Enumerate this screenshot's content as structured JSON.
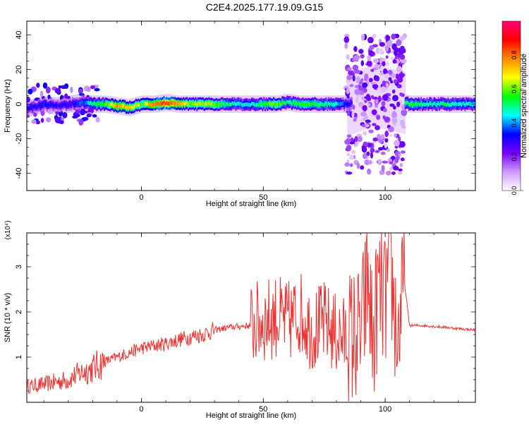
{
  "title": "C2E4.2025.177.19.09.G15",
  "chart_data": [
    {
      "type": "heatmap",
      "xlabel": "Height of straight line (km)",
      "ylabel": "Frequency (Hz)",
      "xlim": [
        -47,
        137
      ],
      "ylim": [
        -50,
        48
      ],
      "xticks": [
        0,
        50,
        100
      ],
      "yticks": [
        -40,
        -20,
        0,
        20,
        40
      ],
      "grid": false,
      "colorbar": {
        "label": "Normalized spectral amplitude",
        "range": [
          0,
          1
        ],
        "ticks": [
          "0.0",
          "0.2",
          "0.4",
          "0.6",
          "0.8"
        ],
        "colors": [
          "#ffffff",
          "#cc99ff",
          "#7700ff",
          "#0000ff",
          "#00ffff",
          "#00ff00",
          "#ffff00",
          "#ff8800",
          "#ff0000",
          "#ff0077"
        ]
      },
      "ridge": [
        {
          "x": -45,
          "freq": -2,
          "amp": 0.3
        },
        {
          "x": -40,
          "freq": 0,
          "amp": 0.35
        },
        {
          "x": -35,
          "freq": -1,
          "amp": 0.3
        },
        {
          "x": -30,
          "freq": 0,
          "amp": 0.3
        },
        {
          "x": -25,
          "freq": 1,
          "amp": 0.35
        },
        {
          "x": -20,
          "freq": 0,
          "amp": 0.5
        },
        {
          "x": -15,
          "freq": 0,
          "amp": 0.55
        },
        {
          "x": -10,
          "freq": -1,
          "amp": 0.75
        },
        {
          "x": -5,
          "freq": -2,
          "amp": 0.7
        },
        {
          "x": 0,
          "freq": 0,
          "amp": 0.6
        },
        {
          "x": 5,
          "freq": 0,
          "amp": 0.8
        },
        {
          "x": 10,
          "freq": 1,
          "amp": 0.85
        },
        {
          "x": 15,
          "freq": 0,
          "amp": 0.75
        },
        {
          "x": 20,
          "freq": 0,
          "amp": 0.6
        },
        {
          "x": 25,
          "freq": 0,
          "amp": 0.65
        },
        {
          "x": 30,
          "freq": 0,
          "amp": 0.6
        },
        {
          "x": 35,
          "freq": 0,
          "amp": 0.5
        },
        {
          "x": 40,
          "freq": 0,
          "amp": 0.45
        },
        {
          "x": 45,
          "freq": 0,
          "amp": 0.45
        },
        {
          "x": 50,
          "freq": 0,
          "amp": 0.55
        },
        {
          "x": 55,
          "freq": 0,
          "amp": 0.6
        },
        {
          "x": 60,
          "freq": 1,
          "amp": 0.5
        },
        {
          "x": 65,
          "freq": 0,
          "amp": 0.55
        },
        {
          "x": 70,
          "freq": 0,
          "amp": 0.55
        },
        {
          "x": 75,
          "freq": 0,
          "amp": 0.5
        },
        {
          "x": 80,
          "freq": 0,
          "amp": 0.45
        },
        {
          "x": 85,
          "freq": 0,
          "amp": 0.3
        },
        {
          "x": 95,
          "freq": 5,
          "amp": 0.25
        },
        {
          "x": 110,
          "freq": 0,
          "amp": 0.55
        },
        {
          "x": 115,
          "freq": 0,
          "amp": 0.5
        },
        {
          "x": 120,
          "freq": 0,
          "amp": 0.45
        },
        {
          "x": 125,
          "freq": 0,
          "amp": 0.5
        },
        {
          "x": 130,
          "freq": 0,
          "amp": 0.45
        },
        {
          "x": 135,
          "freq": 0,
          "amp": 0.45
        }
      ]
    },
    {
      "type": "line",
      "xlabel": "Height of straight line (km)",
      "ylabel": "SNR (10 * v/v)",
      "yscale_label": "(x10⁴)",
      "xlim": [
        -47,
        137
      ],
      "ylim": [
        0,
        3.75
      ],
      "xticks": [
        0,
        50,
        100
      ],
      "yticks": [
        1,
        2,
        3
      ],
      "grid": false,
      "line_color": "#ee3333",
      "x": [
        -47,
        -40,
        -35,
        -30,
        -25,
        -20,
        -15,
        -10,
        -5,
        0,
        5,
        10,
        15,
        20,
        25,
        30,
        35,
        40,
        45,
        50,
        55,
        60,
        65,
        70,
        75,
        80,
        85,
        90,
        93,
        95,
        97,
        100,
        102,
        105,
        108,
        110,
        115,
        120,
        125,
        130,
        137
      ],
      "y": [
        0.35,
        0.4,
        0.45,
        0.5,
        0.65,
        0.75,
        0.9,
        1.0,
        1.1,
        1.2,
        1.25,
        1.3,
        1.38,
        1.45,
        1.5,
        1.6,
        1.65,
        1.68,
        1.7,
        1.8,
        1.9,
        1.75,
        2.0,
        1.6,
        1.75,
        1.5,
        1.4,
        1.5,
        2.7,
        1.2,
        2.5,
        2.2,
        3.0,
        1.4,
        2.6,
        1.7,
        1.7,
        1.68,
        1.66,
        1.63,
        1.6
      ]
    }
  ]
}
